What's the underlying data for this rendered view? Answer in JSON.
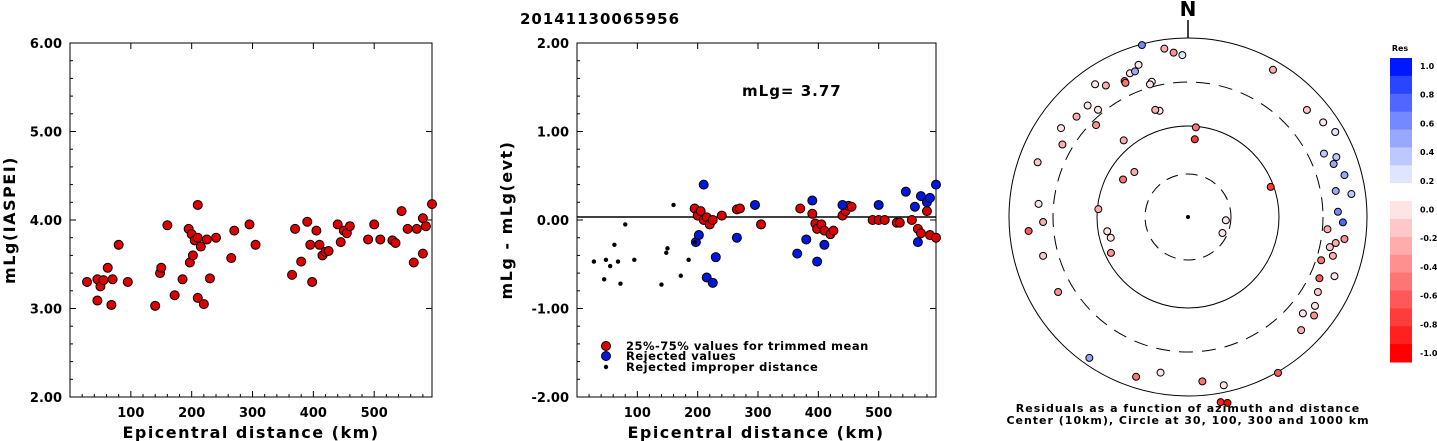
{
  "title": "20141130065956",
  "chart_data": [
    {
      "type": "scatter",
      "xlabel": "Epicentral distance (km)",
      "ylabel": "mLg(IASPEI)",
      "xlim": [
        0,
        595
      ],
      "ylim": [
        2.0,
        6.0
      ],
      "xticks": [
        "100",
        "200",
        "300",
        "400",
        "500"
      ],
      "yticks": [
        "2.00",
        "3.00",
        "4.00",
        "5.00",
        "6.00"
      ],
      "points": [
        [
          28,
          3.3
        ],
        [
          45,
          3.33
        ],
        [
          45,
          3.09
        ],
        [
          50,
          3.25
        ],
        [
          55,
          3.32
        ],
        [
          62,
          3.46
        ],
        [
          68,
          3.04
        ],
        [
          70,
          3.33
        ],
        [
          80,
          3.72
        ],
        [
          95,
          3.3
        ],
        [
          140,
          3.03
        ],
        [
          148,
          3.4
        ],
        [
          150,
          3.46
        ],
        [
          160,
          3.94
        ],
        [
          172,
          3.15
        ],
        [
          185,
          3.33
        ],
        [
          195,
          3.9
        ],
        [
          197,
          3.52
        ],
        [
          200,
          3.84
        ],
        [
          202,
          3.6
        ],
        [
          205,
          3.77
        ],
        [
          210,
          3.8
        ],
        [
          210,
          3.12
        ],
        [
          210,
          4.17
        ],
        [
          215,
          3.7
        ],
        [
          220,
          3.05
        ],
        [
          225,
          3.78
        ],
        [
          230,
          3.34
        ],
        [
          240,
          3.8
        ],
        [
          265,
          3.57
        ],
        [
          270,
          3.88
        ],
        [
          295,
          3.95
        ],
        [
          305,
          3.72
        ],
        [
          365,
          3.38
        ],
        [
          370,
          3.9
        ],
        [
          380,
          3.53
        ],
        [
          390,
          3.98
        ],
        [
          395,
          3.72
        ],
        [
          398,
          3.3
        ],
        [
          405,
          3.88
        ],
        [
          410,
          3.72
        ],
        [
          415,
          3.6
        ],
        [
          420,
          3.64
        ],
        [
          425,
          3.65
        ],
        [
          440,
          3.95
        ],
        [
          445,
          3.75
        ],
        [
          450,
          3.88
        ],
        [
          455,
          3.85
        ],
        [
          460,
          3.93
        ],
        [
          490,
          3.78
        ],
        [
          500,
          3.95
        ],
        [
          510,
          3.78
        ],
        [
          530,
          3.77
        ],
        [
          535,
          3.74
        ],
        [
          545,
          4.1
        ],
        [
          555,
          3.9
        ],
        [
          565,
          3.52
        ],
        [
          570,
          3.9
        ],
        [
          580,
          4.02
        ],
        [
          580,
          3.62
        ],
        [
          585,
          3.93
        ],
        [
          595,
          4.18
        ]
      ]
    },
    {
      "type": "scatter",
      "xlabel": "Epicentral distance (km)",
      "ylabel": "mLg - mLg(evt)",
      "xlim": [
        0,
        595
      ],
      "ylim": [
        -2.0,
        2.0
      ],
      "xticks": [
        "100",
        "200",
        "300",
        "400",
        "500"
      ],
      "yticks": [
        "-2.00",
        "-1.00",
        "0.00",
        "1.00",
        "2.00"
      ],
      "annotation": "mLg= 3.77",
      "legend": [
        {
          "label": "25%-75% values for trimmed mean",
          "color": "#dd0000"
        },
        {
          "label": "Rejected values",
          "color": "#0018dd"
        },
        {
          "label": "Rejected improper distance",
          "color": "#000000"
        }
      ],
      "series": [
        {
          "name": "25%-75% values for trimmed mean",
          "color": "#dd0000",
          "size": 4.5,
          "points": [
            [
              195,
              0.13
            ],
            [
              200,
              0.05
            ],
            [
              205,
              0.1
            ],
            [
              210,
              0.0
            ],
            [
              215,
              0.03
            ],
            [
              220,
              -0.05
            ],
            [
              225,
              0.0
            ],
            [
              240,
              0.05
            ],
            [
              265,
              0.12
            ],
            [
              270,
              0.13
            ],
            [
              305,
              -0.05
            ],
            [
              370,
              0.13
            ],
            [
              390,
              0.07
            ],
            [
              395,
              -0.04
            ],
            [
              398,
              -0.1
            ],
            [
              405,
              -0.05
            ],
            [
              410,
              -0.12
            ],
            [
              420,
              -0.16
            ],
            [
              425,
              -0.12
            ],
            [
              440,
              0.05
            ],
            [
              445,
              0.1
            ],
            [
              450,
              0.16
            ],
            [
              455,
              0.15
            ],
            [
              490,
              0.0
            ],
            [
              500,
              0.0
            ],
            [
              510,
              0.0
            ],
            [
              530,
              -0.03
            ],
            [
              535,
              -0.03
            ],
            [
              555,
              0.0
            ],
            [
              565,
              -0.1
            ],
            [
              570,
              -0.15
            ],
            [
              580,
              0.1
            ],
            [
              585,
              -0.17
            ],
            [
              595,
              -0.2
            ]
          ]
        },
        {
          "name": "Rejected values",
          "color": "#0018dd",
          "size": 4.5,
          "points": [
            [
              197,
              -0.25
            ],
            [
              202,
              -0.17
            ],
            [
              210,
              0.4
            ],
            [
              215,
              -0.65
            ],
            [
              225,
              -0.71
            ],
            [
              230,
              -0.42
            ],
            [
              265,
              -0.2
            ],
            [
              295,
              0.17
            ],
            [
              365,
              -0.38
            ],
            [
              380,
              -0.22
            ],
            [
              390,
              0.22
            ],
            [
              398,
              -0.47
            ],
            [
              410,
              -0.28
            ],
            [
              440,
              0.17
            ],
            [
              500,
              0.17
            ],
            [
              545,
              0.32
            ],
            [
              560,
              0.15
            ],
            [
              565,
              -0.25
            ],
            [
              570,
              0.27
            ],
            [
              580,
              0.2
            ],
            [
              585,
              0.25
            ],
            [
              595,
              0.4
            ]
          ]
        },
        {
          "name": "Rejected improper distance",
          "color": "#000000",
          "size": 2.2,
          "points": [
            [
              28,
              -0.47
            ],
            [
              45,
              -0.67
            ],
            [
              48,
              -0.45
            ],
            [
              55,
              -0.52
            ],
            [
              62,
              -0.28
            ],
            [
              68,
              -0.47
            ],
            [
              72,
              -0.72
            ],
            [
              80,
              -0.05
            ],
            [
              95,
              -0.45
            ],
            [
              140,
              -0.73
            ],
            [
              148,
              -0.37
            ],
            [
              150,
              -0.32
            ],
            [
              160,
              0.17
            ],
            [
              172,
              -0.63
            ],
            [
              185,
              -0.45
            ],
            [
              195,
              -0.25
            ]
          ]
        }
      ]
    },
    {
      "type": "scatter",
      "subtype": "polar",
      "north_label": "N",
      "caption": [
        "Residuals as a function of azimuth and distance",
        "Center (10km), Circle at 30, 100, 300 and 1000 km"
      ],
      "colorbar": {
        "title": "Res",
        "ticks": [
          "1.0",
          "0.8",
          "0.6",
          "0.4",
          "0.2",
          "0.0",
          "-0.2",
          "-0.4",
          "-0.6",
          "-0.8",
          "-1.0"
        ],
        "colors": [
          "#0018ff",
          "#2a44ff",
          "#5066ff",
          "#7488ff",
          "#98a8ff",
          "#bcc8ff",
          "#dfe4ff",
          "#ffffff",
          "#ffe4e4",
          "#ffc8c8",
          "#ffacac",
          "#ff9090",
          "#ff7474",
          "#ff5858",
          "#ff3c3c",
          "#ff2020",
          "#ff0000"
        ]
      },
      "points": [
        [
          -15,
          178,
          0.6
        ],
        [
          -8,
          170,
          -0.2
        ],
        [
          -5,
          165,
          -0.4
        ],
        [
          -2,
          162,
          0.3
        ],
        [
          -25,
          150,
          -0.6
        ],
        [
          -35,
          162,
          0.0
        ],
        [
          30,
          170,
          -0.3
        ],
        [
          48,
          160,
          -0.1
        ],
        [
          55,
          165,
          0.0
        ],
        [
          60,
          170,
          0.3
        ],
        [
          65,
          150,
          0.4
        ],
        [
          70,
          155,
          0.5
        ],
        [
          68,
          160,
          0.4
        ],
        [
          75,
          162,
          0.5
        ],
        [
          80,
          150,
          0.5
        ],
        [
          82,
          165,
          0.4
        ],
        [
          88,
          150,
          0.6
        ],
        [
          92,
          155,
          0.7
        ],
        [
          95,
          140,
          -0.3
        ],
        [
          98,
          158,
          -0.4
        ],
        [
          100,
          150,
          -0.3
        ],
        [
          102,
          145,
          -0.1
        ],
        [
          105,
          150,
          -0.2
        ],
        [
          108,
          140,
          -0.5
        ],
        [
          112,
          158,
          0.0
        ],
        [
          115,
          145,
          -0.6
        ],
        [
          120,
          150,
          -0.1
        ],
        [
          125,
          155,
          0.0
        ],
        [
          128,
          160,
          -0.4
        ],
        [
          130,
          150,
          0.0
        ],
        [
          135,
          160,
          -0.3
        ],
        [
          150,
          180,
          -0.6
        ],
        [
          170,
          188,
          -0.9
        ],
        [
          168,
          190,
          -1.0
        ],
        [
          168,
          172,
          0.0
        ],
        [
          175,
          165,
          -0.5
        ],
        [
          190,
          158,
          0.0
        ],
        [
          198,
          168,
          -0.5
        ],
        [
          215,
          172,
          0.5
        ],
        [
          240,
          150,
          -0.4
        ],
        [
          255,
          150,
          -0.1
        ],
        [
          265,
          160,
          -0.6
        ],
        [
          268,
          145,
          -0.2
        ],
        [
          275,
          150,
          0.0
        ],
        [
          290,
          160,
          -0.1
        ],
        [
          300,
          145,
          -0.2
        ],
        [
          305,
          155,
          0.0
        ],
        [
          320,
          140,
          0.0
        ],
        [
          318,
          150,
          0.0
        ],
        [
          328,
          155,
          -0.3
        ],
        [
          335,
          148,
          -0.5
        ],
        [
          338,
          155,
          0.0
        ],
        [
          340,
          155,
          0.5
        ],
        [
          345,
          140,
          0.1
        ],
        [
          312,
          150,
          -0.3
        ],
        [
          342,
          160,
          0.0
        ],
        [
          344,
          138,
          0.0
        ],
        [
          345,
          110,
          0.0
        ],
        [
          343,
          112,
          -0.3
        ],
        [
          315,
          130,
          -0.4
        ],
        [
          320,
          100,
          -0.2
        ],
        [
          5,
          78,
          -0.8
        ],
        [
          5,
          90,
          -0.5
        ],
        [
          70,
          88,
          -0.8
        ],
        [
          115,
          38,
          0.0
        ],
        [
          245,
          85,
          -0.4
        ],
        [
          255,
          80,
          0.0
        ],
        [
          260,
          82,
          0.0
        ],
        [
          300,
          75,
          -0.5
        ],
        [
          310,
          70,
          -0.3
        ],
        [
          275,
          90,
          -0.3
        ],
        [
          95,
          38,
          0.0
        ]
      ]
    }
  ]
}
